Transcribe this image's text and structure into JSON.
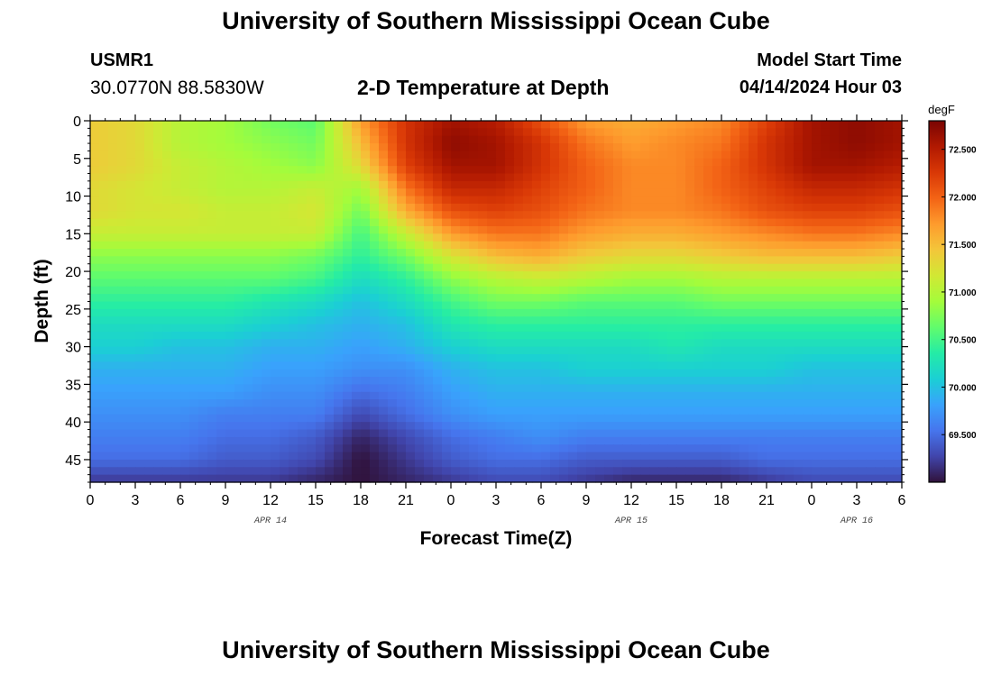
{
  "header": {
    "title": "University of Southern Mississippi Ocean Cube",
    "station": "USMR1",
    "coordinates": "30.0770N  88.5830W",
    "subtitle": "2-D Temperature at Depth",
    "model_start_label": "Model Start Time",
    "model_start_value": "04/14/2024 Hour 03"
  },
  "footer": {
    "title": "University of Southern Mississippi Ocean Cube"
  },
  "colors": {
    "colormap": [
      "#30123b",
      "#4145ab",
      "#4675ed",
      "#39a2fc",
      "#1bcfd4",
      "#24eca6",
      "#61fc6c",
      "#a4fc3b",
      "#d1e834",
      "#f3c63a",
      "#fe9b2d",
      "#f36315",
      "#d93806",
      "#b11901",
      "#7a0402"
    ],
    "axis": "#000000"
  },
  "chart_data": {
    "type": "heatmap",
    "title": "2-D Temperature at Depth",
    "xlabel": "Forecast Time(Z)",
    "ylabel": "Depth (ft)",
    "x_unit": "hours since 04/14 00Z",
    "xlim": [
      0,
      54
    ],
    "ylim": [
      0,
      48
    ],
    "y_inverted": true,
    "x_ticks": [
      0,
      3,
      6,
      9,
      12,
      15,
      18,
      21,
      24,
      27,
      30,
      33,
      36,
      39,
      42,
      45,
      48,
      51,
      54
    ],
    "x_tick_labels": [
      "0",
      "3",
      "6",
      "9",
      "12",
      "15",
      "18",
      "21",
      "0",
      "3",
      "6",
      "9",
      "12",
      "15",
      "18",
      "21",
      "0",
      "3",
      "6"
    ],
    "y_ticks": [
      0,
      5,
      10,
      15,
      20,
      25,
      30,
      35,
      40,
      45
    ],
    "date_labels": [
      {
        "x": 12,
        "label": "APR 14"
      },
      {
        "x": 36,
        "label": "APR 15"
      },
      {
        "x": 51,
        "label": "APR 16"
      }
    ],
    "colorbar": {
      "unit": "degF",
      "range": [
        69.0,
        72.8
      ],
      "tick_values": [
        69.5,
        70.0,
        70.5,
        71.0,
        71.5,
        72.0,
        72.5
      ],
      "tick_labels": [
        "69.500",
        "70.000",
        "70.500",
        "71.000",
        "71.500",
        "72.000",
        "72.500"
      ]
    },
    "grid": false,
    "depths": [
      0,
      3,
      6,
      9,
      12,
      15,
      18,
      21,
      24,
      27,
      30,
      33,
      36,
      39,
      42,
      45,
      48
    ],
    "times": [
      0,
      3,
      6,
      9,
      12,
      15,
      18,
      21,
      24,
      27,
      30,
      33,
      36,
      39,
      42,
      45,
      48,
      51,
      54
    ],
    "values": [
      [
        71.4,
        71.3,
        71.0,
        70.9,
        70.7,
        70.6,
        71.7,
        72.3,
        72.6,
        72.5,
        72.1,
        71.7,
        71.6,
        71.7,
        71.8,
        72.2,
        72.6,
        72.7,
        72.6
      ],
      [
        71.4,
        71.3,
        71.0,
        70.9,
        70.8,
        70.7,
        71.5,
        72.3,
        72.7,
        72.6,
        72.3,
        71.9,
        71.7,
        71.8,
        71.9,
        72.3,
        72.6,
        72.7,
        72.6
      ],
      [
        71.4,
        71.3,
        71.1,
        71.0,
        70.9,
        70.8,
        71.3,
        72.2,
        72.6,
        72.6,
        72.3,
        72.0,
        71.8,
        71.8,
        72.0,
        72.3,
        72.6,
        72.6,
        72.5
      ],
      [
        71.3,
        71.2,
        71.1,
        71.0,
        71.0,
        71.1,
        70.9,
        71.9,
        72.4,
        72.4,
        72.2,
        72.0,
        71.8,
        71.8,
        72.0,
        72.2,
        72.4,
        72.4,
        72.3
      ],
      [
        71.3,
        71.2,
        71.2,
        71.1,
        71.1,
        71.2,
        70.7,
        71.6,
        72.1,
        72.2,
        72.1,
        71.9,
        71.8,
        71.8,
        71.9,
        72.1,
        72.2,
        72.2,
        72.1
      ],
      [
        71.1,
        71.1,
        71.1,
        71.1,
        71.1,
        71.1,
        70.5,
        71.1,
        71.7,
        71.9,
        71.9,
        71.7,
        71.6,
        71.6,
        71.7,
        71.8,
        71.9,
        71.9,
        71.8
      ],
      [
        70.8,
        70.8,
        70.8,
        70.8,
        70.8,
        70.7,
        70.4,
        70.7,
        71.2,
        71.5,
        71.6,
        71.4,
        71.3,
        71.3,
        71.4,
        71.5,
        71.5,
        71.5,
        71.4
      ],
      [
        70.6,
        70.6,
        70.6,
        70.6,
        70.6,
        70.5,
        70.2,
        70.4,
        70.8,
        71.0,
        71.1,
        71.0,
        70.9,
        70.9,
        71.0,
        71.0,
        71.0,
        71.0,
        71.0
      ],
      [
        70.4,
        70.4,
        70.4,
        70.4,
        70.3,
        70.2,
        70.0,
        70.2,
        70.5,
        70.7,
        70.7,
        70.6,
        70.6,
        70.6,
        70.7,
        70.7,
        70.7,
        70.7,
        70.7
      ],
      [
        70.2,
        70.2,
        70.2,
        70.2,
        70.1,
        70.0,
        69.9,
        70.0,
        70.3,
        70.4,
        70.4,
        70.4,
        70.4,
        70.4,
        70.4,
        70.4,
        70.4,
        70.4,
        70.4
      ],
      [
        70.1,
        70.1,
        70.0,
        70.0,
        69.9,
        69.9,
        69.8,
        69.9,
        70.1,
        70.2,
        70.2,
        70.2,
        70.2,
        70.3,
        70.2,
        70.2,
        70.2,
        70.2,
        70.2
      ],
      [
        69.9,
        69.9,
        69.9,
        69.9,
        69.8,
        69.8,
        69.7,
        69.7,
        69.9,
        70.0,
        70.0,
        70.1,
        70.1,
        70.1,
        70.1,
        70.1,
        70.0,
        70.0,
        70.0
      ],
      [
        69.8,
        69.8,
        69.8,
        69.8,
        69.7,
        69.7,
        69.5,
        69.6,
        69.8,
        69.9,
        69.9,
        69.9,
        69.9,
        69.9,
        69.9,
        69.9,
        69.9,
        69.9,
        69.9
      ],
      [
        69.7,
        69.7,
        69.7,
        69.6,
        69.6,
        69.6,
        69.3,
        69.5,
        69.7,
        69.8,
        69.8,
        69.8,
        69.8,
        69.8,
        69.8,
        69.8,
        69.8,
        69.8,
        69.8
      ],
      [
        69.6,
        69.6,
        69.6,
        69.5,
        69.5,
        69.4,
        69.1,
        69.3,
        69.5,
        69.6,
        69.7,
        69.6,
        69.6,
        69.6,
        69.6,
        69.6,
        69.6,
        69.6,
        69.6
      ],
      [
        69.5,
        69.5,
        69.5,
        69.4,
        69.4,
        69.3,
        69.0,
        69.2,
        69.4,
        69.5,
        69.5,
        69.4,
        69.4,
        69.4,
        69.4,
        69.5,
        69.5,
        69.5,
        69.5
      ],
      [
        69.2,
        69.2,
        69.2,
        69.2,
        69.2,
        69.1,
        69.0,
        69.1,
        69.2,
        69.3,
        69.3,
        69.2,
        69.1,
        69.1,
        69.1,
        69.2,
        69.3,
        69.3,
        69.3
      ]
    ]
  }
}
